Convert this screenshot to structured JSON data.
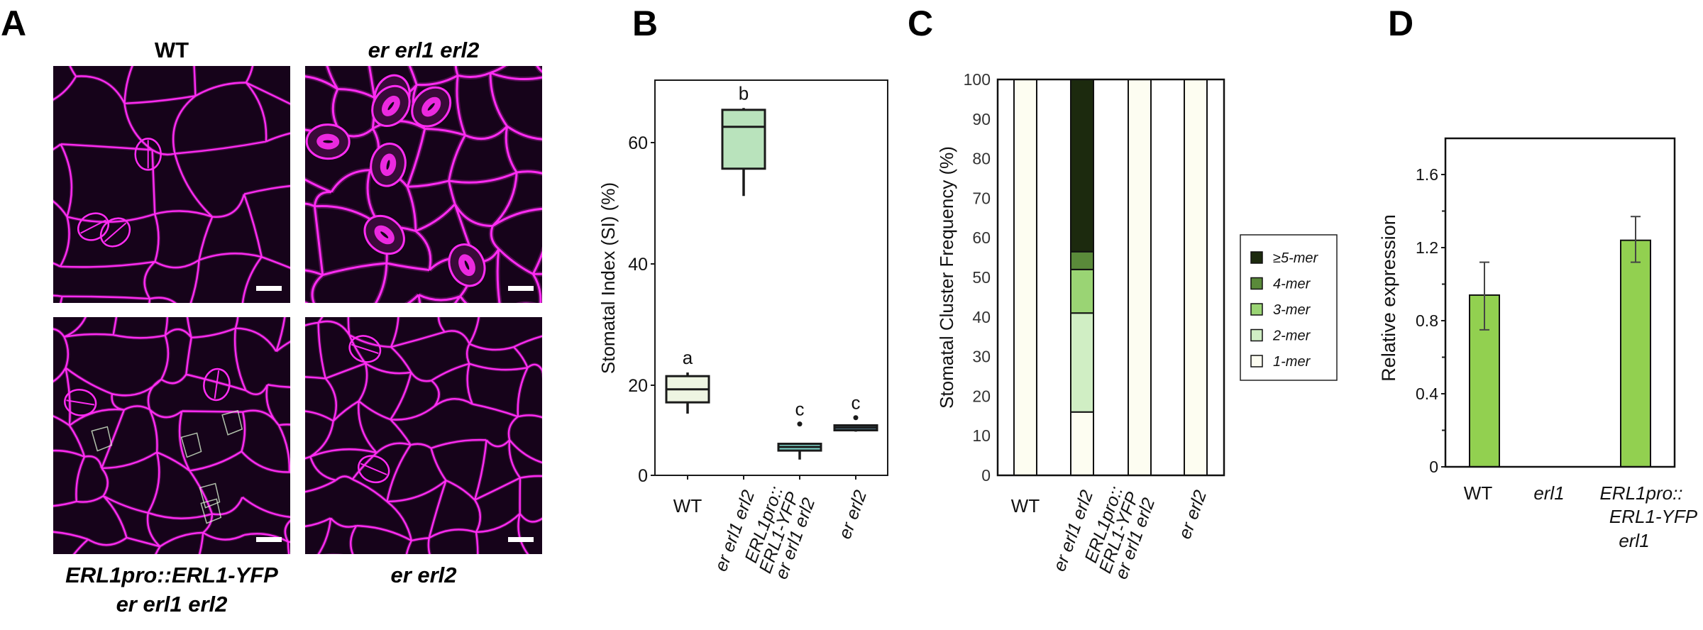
{
  "panel_labels": {
    "a": "A",
    "b": "B",
    "c": "C",
    "d": "D"
  },
  "panel_a": {
    "images": [
      {
        "title": "WT"
      },
      {
        "title": "er erl1 erl2"
      },
      {
        "title_line1": "ERL1pro::ERL1-YFP",
        "title_line2": "er erl1 erl2"
      },
      {
        "title": "er erl2"
      }
    ],
    "colors": {
      "background": "#16031a",
      "cell_wall": "#ff2cf2",
      "yfp": "#d8f0d0"
    }
  },
  "chart_data": [
    {
      "type": "box",
      "panel": "B",
      "title": "",
      "xlabel": "",
      "ylabel": "Stomatal Index (SI)  (%)",
      "yticks": [
        0,
        20,
        40,
        60
      ],
      "ytick_labels": [
        "0",
        "20",
        "40",
        "60"
      ],
      "ylim": [
        0,
        70
      ],
      "categories": [
        {
          "lines": [
            "WT"
          ],
          "italic": false
        },
        {
          "lines": [
            "er erl1 erl2"
          ],
          "italic": true
        },
        {
          "lines": [
            "ERL1pro::",
            "ERL1-YFP",
            "er erl1 erl2"
          ],
          "italic": true
        },
        {
          "lines": [
            "er  erl2"
          ],
          "italic": true
        }
      ],
      "series": [
        {
          "name": "WT",
          "whisker_low": 13.7,
          "q1": 16.2,
          "median": 19.1,
          "q3": 21.5,
          "whisker_high": 22.1,
          "outliers": [],
          "group": "a",
          "color": "#eef5e2"
        },
        {
          "name": "er erl1 erl2",
          "whisker_low": 51.2,
          "q1": 55.7,
          "median": 62.6,
          "q3": 65.4,
          "whisker_high": 65.7,
          "outliers": [],
          "group": "b",
          "color": "#b9e3bc"
        },
        {
          "name": "ERL1pro::ERL1-YFP er erl1 erl2",
          "whisker_low": 3.5,
          "q1": 5.5,
          "median": 6.3,
          "q3": 7.0,
          "whisker_high": 7.0,
          "outliers": [
            11.4
          ],
          "group": "c",
          "color": "#80d8cc"
        },
        {
          "name": "er erl2",
          "whisker_low": 9.7,
          "q1": 10.0,
          "median": 10.6,
          "q3": 11.1,
          "whisker_high": 11.1,
          "outliers": [
            12.8
          ],
          "group": "c",
          "color": "#5d8ca2"
        }
      ]
    },
    {
      "type": "bar",
      "stacked": true,
      "panel": "C",
      "title": "",
      "xlabel": "",
      "ylabel": "Stomatal Cluster Frequency (%)",
      "ylim": [
        0,
        100
      ],
      "yticks": [
        0,
        10,
        20,
        30,
        40,
        50,
        60,
        70,
        80,
        90,
        100
      ],
      "ytick_labels": [
        "0",
        "10",
        "20",
        "30",
        "40",
        "50",
        "60",
        "70",
        "80",
        "90",
        "100"
      ],
      "categories": [
        {
          "lines": [
            "WT"
          ],
          "italic": false
        },
        {
          "lines": [
            "er erl1 erl2"
          ],
          "italic": true
        },
        {
          "lines": [
            "ERL1pro::",
            "ERL1-YFP",
            "er erl1 erl2"
          ],
          "italic": true
        },
        {
          "lines": [
            "er  erl2"
          ],
          "italic": true
        }
      ],
      "series": [
        {
          "name": "1-mer",
          "color": "#fdfdf1",
          "values": [
            100,
            16,
            100,
            100
          ]
        },
        {
          "name": "2-mer",
          "color": "#d0eec4",
          "values": [
            0,
            25,
            0,
            0
          ]
        },
        {
          "name": "3-mer",
          "color": "#9ad474",
          "values": [
            0,
            11,
            0,
            0
          ]
        },
        {
          "name": "4-mer",
          "color": "#5a8a3a",
          "values": [
            0,
            4.5,
            0,
            0
          ]
        },
        {
          "name": "≥5-mer",
          "color": "#1c2a0e",
          "values": [
            0,
            43.5,
            0,
            0
          ]
        }
      ],
      "legend": {
        "position": "right",
        "entries": [
          "≥5-mer",
          "4-mer",
          "3-mer",
          "2-mer",
          "1-mer"
        ]
      }
    },
    {
      "type": "bar",
      "panel": "D",
      "title": "",
      "xlabel": "",
      "ylabel": "Relative expression",
      "ylim": [
        0,
        1.8
      ],
      "yticks": [
        0,
        0.4,
        0.8,
        1.2,
        1.6
      ],
      "ytick_labels": [
        "0",
        "0.4",
        "0.8",
        "1.2",
        "1.6"
      ],
      "minor_ticks": [
        0.2,
        0.6,
        1.0,
        1.4
      ],
      "categories": [
        {
          "lines": [
            "WT"
          ],
          "italic": false
        },
        {
          "lines": [
            "erl1"
          ],
          "italic": true
        },
        {
          "lines": [
            "ERL1pro::",
            "ERL1-YFP",
            "erl1"
          ],
          "italic": true
        }
      ],
      "values": [
        0.94,
        null,
        1.24
      ],
      "error_low": [
        0.75,
        null,
        1.12
      ],
      "error_high": [
        1.12,
        null,
        1.37
      ],
      "color": "#92d050"
    }
  ]
}
